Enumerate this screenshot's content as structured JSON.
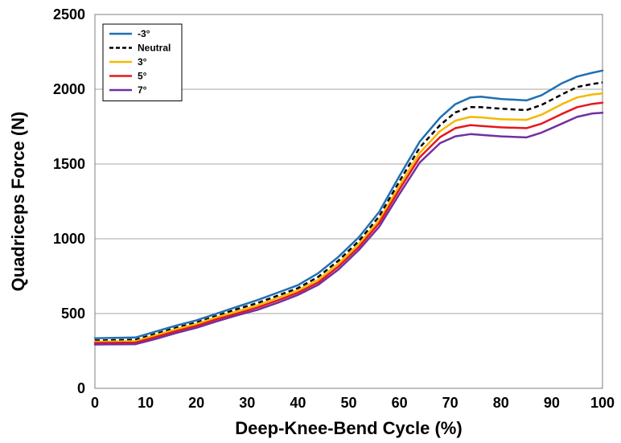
{
  "chart_data": {
    "type": "line",
    "title": "",
    "xlabel": "Deep-Knee-Bend Cycle (%)",
    "ylabel": "Quadriceps Force (N)",
    "xlim": [
      0,
      100
    ],
    "ylim": [
      0,
      2500
    ],
    "xticks": [
      "0",
      "10",
      "20",
      "30",
      "40",
      "50",
      "60",
      "70",
      "80",
      "90",
      "100"
    ],
    "yticks": [
      "0",
      "500",
      "1000",
      "1500",
      "2000",
      "2500"
    ],
    "grid": "horizontal",
    "legend_position": "top-left",
    "series": [
      {
        "name": "-3°",
        "color": "#1f6fb5",
        "dash": "solid",
        "x": [
          0,
          8,
          12,
          16,
          20,
          24,
          28,
          32,
          36,
          40,
          44,
          48,
          52,
          56,
          60,
          64,
          68,
          71,
          74,
          76,
          80,
          85,
          88,
          92,
          95,
          98,
          100
        ],
        "y": [
          335,
          340,
          380,
          420,
          455,
          500,
          545,
          590,
          640,
          690,
          770,
          880,
          1010,
          1180,
          1420,
          1650,
          1810,
          1900,
          1945,
          1950,
          1935,
          1925,
          1960,
          2040,
          2085,
          2110,
          2125
        ]
      },
      {
        "name": "Neutral",
        "color": "#000000",
        "dash": "dashed",
        "x": [
          0,
          8,
          12,
          16,
          20,
          24,
          28,
          32,
          36,
          40,
          44,
          48,
          52,
          56,
          60,
          64,
          68,
          71,
          74,
          76,
          80,
          85,
          88,
          92,
          95,
          98,
          100
        ],
        "y": [
          320,
          325,
          365,
          405,
          440,
          485,
          530,
          570,
          620,
          670,
          745,
          855,
          985,
          1150,
          1385,
          1610,
          1760,
          1845,
          1880,
          1880,
          1870,
          1860,
          1895,
          1965,
          2015,
          2035,
          2045
        ]
      },
      {
        "name": "3°",
        "color": "#f5b800",
        "dash": "solid",
        "x": [
          0,
          8,
          12,
          16,
          20,
          24,
          28,
          32,
          36,
          40,
          44,
          48,
          52,
          56,
          60,
          64,
          68,
          71,
          74,
          76,
          80,
          85,
          88,
          92,
          95,
          98,
          100
        ],
        "y": [
          312,
          315,
          355,
          395,
          430,
          475,
          515,
          555,
          605,
          655,
          725,
          835,
          965,
          1125,
          1355,
          1575,
          1720,
          1790,
          1815,
          1812,
          1800,
          1795,
          1830,
          1900,
          1945,
          1965,
          1972
        ]
      },
      {
        "name": "5°",
        "color": "#e8161c",
        "dash": "solid",
        "x": [
          0,
          8,
          12,
          16,
          20,
          24,
          28,
          32,
          36,
          40,
          44,
          48,
          52,
          56,
          60,
          64,
          68,
          71,
          74,
          76,
          80,
          85,
          88,
          92,
          95,
          98,
          100
        ],
        "y": [
          303,
          306,
          343,
          383,
          418,
          462,
          500,
          540,
          588,
          640,
          708,
          815,
          945,
          1105,
          1330,
          1545,
          1680,
          1740,
          1760,
          1755,
          1745,
          1740,
          1770,
          1835,
          1880,
          1902,
          1910
        ]
      },
      {
        "name": "7°",
        "color": "#7030a0",
        "dash": "solid",
        "x": [
          0,
          8,
          12,
          16,
          20,
          24,
          28,
          32,
          36,
          40,
          44,
          48,
          52,
          56,
          60,
          64,
          68,
          71,
          74,
          76,
          80,
          85,
          88,
          92,
          95,
          98,
          100
        ],
        "y": [
          293,
          295,
          330,
          370,
          405,
          448,
          488,
          525,
          572,
          625,
          692,
          795,
          925,
          1080,
          1300,
          1510,
          1640,
          1685,
          1700,
          1695,
          1685,
          1678,
          1710,
          1770,
          1815,
          1838,
          1843
        ]
      }
    ]
  }
}
